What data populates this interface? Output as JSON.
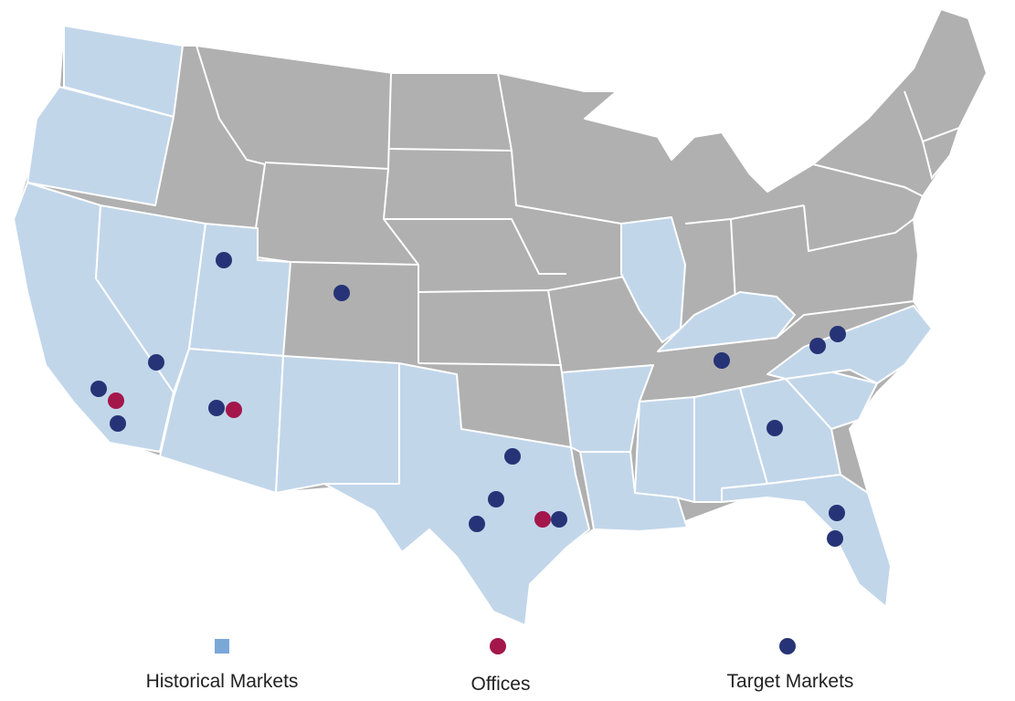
{
  "legend": {
    "items": [
      {
        "label": "Historical Markets",
        "color": "#7ba7d7"
      },
      {
        "label": "Offices",
        "color": "#a3174a"
      },
      {
        "label": "Target Markets",
        "color": "#263477"
      }
    ]
  }
}
